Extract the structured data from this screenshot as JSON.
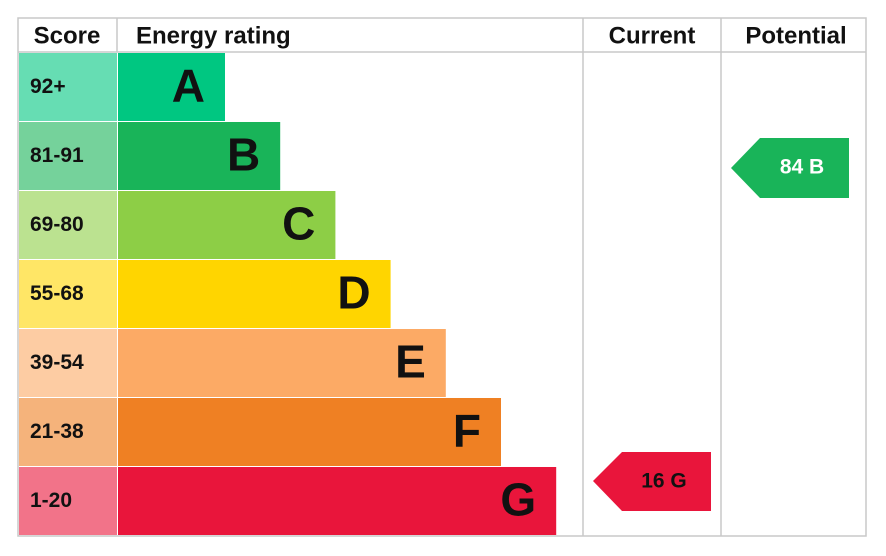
{
  "header": {
    "score": "Score",
    "energy_rating": "Energy rating",
    "current": "Current",
    "potential": "Potential"
  },
  "bands": [
    {
      "score": "92+",
      "letter": "A",
      "color": "#00c781"
    },
    {
      "score": "81-91",
      "letter": "B",
      "color": "#19b459"
    },
    {
      "score": "69-80",
      "letter": "C",
      "color": "#8dce46"
    },
    {
      "score": "55-68",
      "letter": "D",
      "color": "#ffd500"
    },
    {
      "score": "39-54",
      "letter": "E",
      "color": "#fcaa65"
    },
    {
      "score": "21-38",
      "letter": "F",
      "color": "#ef8023"
    },
    {
      "score": "1-20",
      "letter": "G",
      "color": "#e9153b"
    }
  ],
  "current": {
    "label": "16 G",
    "color": "#e9153b"
  },
  "potential": {
    "label": "84 B",
    "color": "#19b459"
  }
}
